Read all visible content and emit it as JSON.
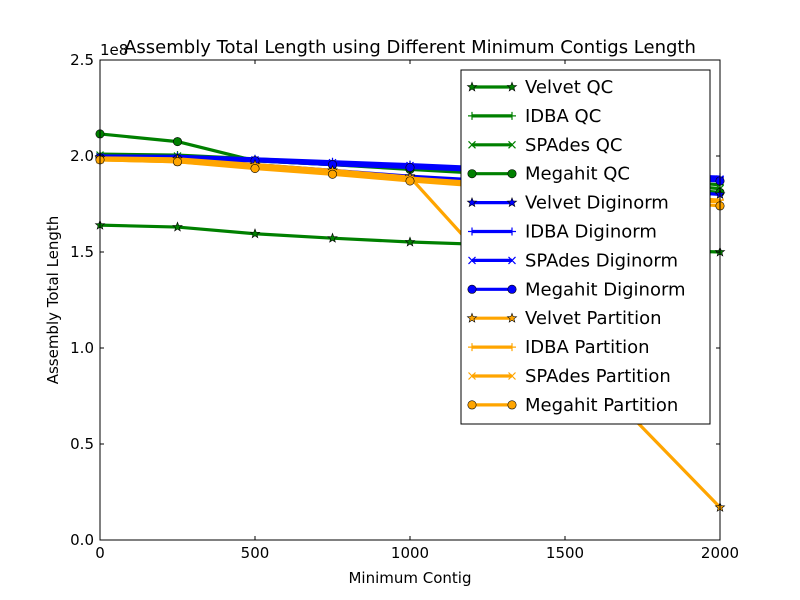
{
  "chart_data": {
    "type": "line",
    "title": "Assembly Total Length using Different Minimum Contigs Length",
    "xlabel": "Minimum Contig",
    "ylabel": "Assembly Total Length",
    "offset_label": "1e8",
    "xlim": [
      0,
      2000
    ],
    "ylim": [
      0,
      2.5
    ],
    "xticks": [
      "0",
      "500",
      "1000",
      "1500",
      "2000"
    ],
    "yticks": [
      "0.0",
      "0.5",
      "1.0",
      "1.5",
      "2.0",
      "2.5"
    ],
    "grid": false,
    "legend_position": "upper-right",
    "x": [
      0,
      250,
      500,
      750,
      1000,
      1500,
      2000
    ],
    "series": [
      {
        "name": "Velvet QC",
        "color": "#008000",
        "marker": "star",
        "values": [
          1.64,
          1.63,
          1.595,
          1.572,
          1.552,
          1.525,
          1.5
        ]
      },
      {
        "name": "IDBA QC",
        "color": "#008000",
        "marker": "plus",
        "values": [
          2.01,
          2.005,
          1.985,
          1.965,
          1.95,
          1.91,
          1.85
        ]
      },
      {
        "name": "SPAdes QC",
        "color": "#008000",
        "marker": "x",
        "values": [
          2.005,
          2.0,
          1.975,
          1.955,
          1.935,
          1.895,
          1.83
        ]
      },
      {
        "name": "Megahit QC",
        "color": "#008000",
        "marker": "circle",
        "values": [
          2.115,
          2.075,
          1.975,
          1.955,
          1.93,
          1.885,
          1.81
        ]
      },
      {
        "name": "Velvet Diginorm",
        "color": "#0000ff",
        "marker": "star",
        "values": [
          1.995,
          1.99,
          1.955,
          1.925,
          1.895,
          1.85,
          1.8
        ]
      },
      {
        "name": "IDBA Diginorm",
        "color": "#0000ff",
        "marker": "plus",
        "values": [
          2.0,
          1.998,
          1.985,
          1.97,
          1.955,
          1.92,
          1.89
        ]
      },
      {
        "name": "SPAdes Diginorm",
        "color": "#0000ff",
        "marker": "x",
        "values": [
          1.995,
          1.99,
          1.98,
          1.965,
          1.95,
          1.915,
          1.88
        ]
      },
      {
        "name": "Megahit Diginorm",
        "color": "#0000ff",
        "marker": "circle",
        "values": [
          1.99,
          1.985,
          1.975,
          1.955,
          1.94,
          1.905,
          1.87
        ]
      },
      {
        "name": "Velvet Partition",
        "color": "#ffa500",
        "marker": "star",
        "values": [
          1.99,
          1.985,
          1.955,
          1.925,
          1.89,
          1.0,
          0.17
        ]
      },
      {
        "name": "IDBA Partition",
        "color": "#ffa500",
        "marker": "plus",
        "values": [
          1.985,
          1.975,
          1.945,
          1.915,
          1.885,
          1.83,
          1.77
        ]
      },
      {
        "name": "SPAdes Partition",
        "color": "#ffa500",
        "marker": "x",
        "values": [
          1.98,
          1.97,
          1.94,
          1.91,
          1.88,
          1.82,
          1.76
        ]
      },
      {
        "name": "Megahit Partition",
        "color": "#ffa500",
        "marker": "circle",
        "values": [
          1.98,
          1.97,
          1.935,
          1.905,
          1.87,
          1.81,
          1.74
        ]
      }
    ]
  }
}
